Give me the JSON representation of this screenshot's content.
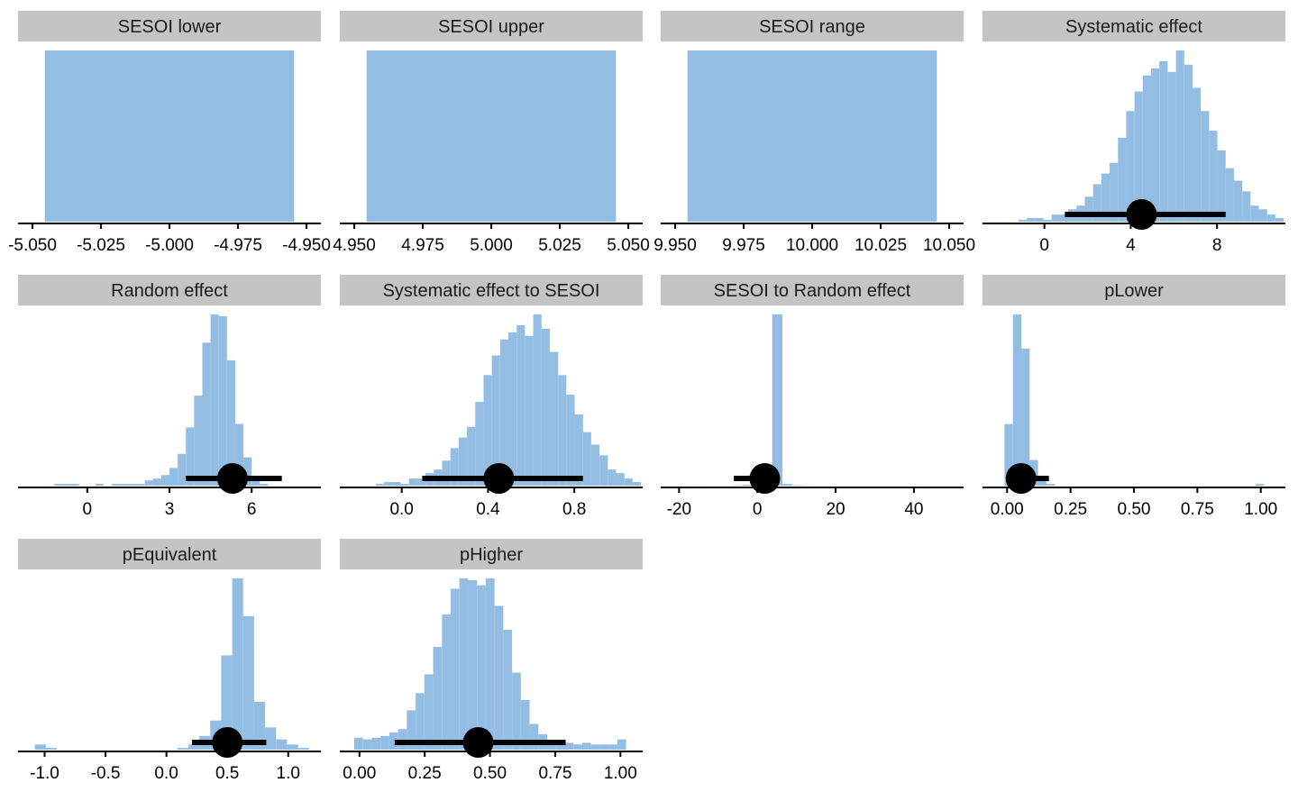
{
  "chart_data": {
    "type": "histogram-facets",
    "colors": {
      "fill": "#94bde3",
      "strip": "#c4c4c4",
      "interval": "#000000"
    },
    "panels": [
      {
        "title": "SESOI lower",
        "xlim": [
          -5.05,
          -4.95
        ],
        "ticks": [
          "-5.050",
          "-5.025",
          "-5.000",
          "-4.975",
          "-4.950"
        ],
        "tick_values": [
          -5.05,
          -5.025,
          -5.0,
          -4.975,
          -4.95
        ],
        "constant": true,
        "value": -5.0,
        "bins": [
          {
            "start": -5.0455,
            "end": -4.9545,
            "count": 1
          }
        ],
        "point_interval": null
      },
      {
        "title": "SESOI upper",
        "xlim": [
          4.95,
          5.05
        ],
        "ticks": [
          "4.950",
          "4.975",
          "5.000",
          "5.025",
          "5.050"
        ],
        "tick_values": [
          4.95,
          4.975,
          5.0,
          5.025,
          5.05
        ],
        "constant": true,
        "value": 5.0,
        "bins": [
          {
            "start": 4.9545,
            "end": 5.0455,
            "count": 1
          }
        ],
        "point_interval": null
      },
      {
        "title": "SESOI range",
        "xlim": [
          9.95,
          10.05
        ],
        "ticks": [
          "9.950",
          "9.975",
          "10.000",
          "10.025",
          "10.050"
        ],
        "tick_values": [
          9.95,
          9.975,
          10.0,
          10.025,
          10.05
        ],
        "constant": true,
        "value": 10.0,
        "bins": [
          {
            "start": 9.9545,
            "end": 10.0455,
            "count": 1
          }
        ],
        "point_interval": null
      },
      {
        "title": "Systematic effect",
        "xlim": [
          -2.2,
          10.5
        ],
        "ticks": [
          "0",
          "4",
          "8"
        ],
        "tick_values": [
          0,
          4,
          8
        ],
        "bin_start": -1.2,
        "bin_width": 0.384,
        "counts": [
          1,
          2,
          2,
          1,
          4,
          4,
          7,
          9,
          14,
          21,
          27,
          33,
          47,
          62,
          73,
          82,
          86,
          90,
          84,
          96,
          88,
          75,
          62,
          51,
          40,
          30,
          23,
          17,
          9,
          7,
          4,
          2
        ],
        "point_interval": {
          "point": 4.5,
          "lower": 0.95,
          "upper": 8.4
        }
      },
      {
        "title": "Random effect",
        "xlim": [
          -2.0,
          8.0
        ],
        "ticks": [
          "0",
          "3",
          "6"
        ],
        "tick_values": [
          0,
          3,
          6
        ],
        "bin_start": -1.5,
        "bin_width": 0.3,
        "counts": [
          0,
          1,
          1,
          1,
          0,
          0,
          1,
          0,
          1,
          1,
          1,
          1,
          3,
          4,
          6,
          10,
          18,
          33,
          51,
          81,
          97,
          96,
          71,
          35,
          16,
          4,
          1
        ],
        "point_interval": {
          "point": 5.3,
          "lower": 3.6,
          "upper": 7.1
        }
      },
      {
        "title": "Systematic effect to SESOI",
        "xlim": [
          -0.22,
          1.05
        ],
        "ticks": [
          "0.0",
          "0.4",
          "0.8"
        ],
        "tick_values": [
          0.0,
          0.4,
          0.8
        ],
        "bin_start": -0.12,
        "bin_width": 0.0384,
        "counts": [
          1,
          2,
          2,
          1,
          4,
          4,
          7,
          9,
          14,
          21,
          27,
          33,
          47,
          62,
          73,
          82,
          86,
          90,
          84,
          96,
          88,
          75,
          62,
          51,
          40,
          30,
          23,
          17,
          9,
          7,
          4,
          2
        ],
        "point_interval": {
          "point": 0.45,
          "lower": 0.095,
          "upper": 0.84
        }
      },
      {
        "title": "SESOI to Random effect",
        "xlim": [
          -21,
          49
        ],
        "ticks": [
          "-20",
          "0",
          "20",
          "40"
        ],
        "tick_values": [
          -20,
          0,
          20,
          40
        ],
        "bin_start": -17,
        "bin_width": 2.6,
        "counts": [
          0.1,
          0,
          0,
          0,
          0.2,
          0.5,
          1,
          2,
          100,
          1,
          0.3,
          0.1,
          0,
          0,
          0,
          0,
          0,
          0,
          0,
          0,
          0,
          0,
          0.1,
          0,
          0
        ],
        "point_interval": {
          "point": 1.9,
          "lower": -6.0,
          "upper": 4.5
        }
      },
      {
        "title": "pLower",
        "xlim": [
          -0.04,
          1.04
        ],
        "ticks": [
          "0.00",
          "0.25",
          "0.50",
          "0.75",
          "1.00"
        ],
        "tick_values": [
          0,
          0.25,
          0.5,
          0.75,
          1.0
        ],
        "bin_start": -0.01,
        "bin_width": 0.033,
        "counts": [
          36,
          100,
          80,
          15,
          3,
          1,
          0,
          0,
          0,
          0,
          0,
          0,
          0,
          0,
          0,
          0,
          0,
          0,
          0,
          0,
          0,
          0,
          0,
          0,
          0,
          0,
          0,
          0,
          0,
          0,
          1
        ],
        "point_interval": {
          "point": 0.055,
          "lower": 0.0,
          "upper": 0.165
        }
      },
      {
        "title": "pEquivalent",
        "xlim": [
          -1.1,
          1.15
        ],
        "ticks": [
          "-1.0",
          "-0.5",
          "0.0",
          "0.5",
          "1.0"
        ],
        "tick_values": [
          -1.0,
          -0.5,
          0.0,
          0.5,
          1.0
        ],
        "bin_start": -1.08,
        "bin_width": 0.09,
        "counts": [
          3,
          1,
          0,
          0,
          0,
          0,
          0,
          0,
          0,
          0,
          0,
          0,
          0,
          1,
          3,
          8,
          17,
          55,
          100,
          78,
          28,
          13,
          6,
          3,
          1
        ],
        "point_interval": {
          "point": 0.5,
          "lower": 0.21,
          "upper": 0.82
        }
      },
      {
        "title": "pHigher",
        "xlim": [
          -0.02,
          1.03
        ],
        "ticks": [
          "0.00",
          "0.25",
          "0.50",
          "0.75",
          "1.00"
        ],
        "tick_values": [
          0,
          0.25,
          0.5,
          0.75,
          1.0
        ],
        "bin_start": -0.02,
        "bin_width": 0.0336,
        "counts": [
          7,
          6,
          7,
          8,
          10,
          12,
          23,
          33,
          44,
          60,
          79,
          94,
          100,
          99,
          96,
          100,
          84,
          70,
          45,
          29,
          15,
          9,
          5,
          4,
          4,
          3,
          4,
          3,
          3,
          3,
          6
        ],
        "point_interval": {
          "point": 0.455,
          "lower": 0.135,
          "upper": 0.79
        }
      }
    ]
  }
}
